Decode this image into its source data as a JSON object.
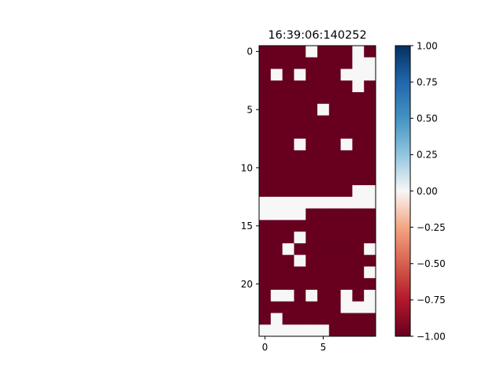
{
  "chart_data": {
    "type": "heatmap",
    "title": "16:39:06:140252",
    "xlabel": "",
    "ylabel": "",
    "colormap": "RdBu",
    "vmin": -1,
    "vmax": 1,
    "x_ticks": [
      "0",
      "5"
    ],
    "y_ticks": [
      "0",
      "5",
      "10",
      "15",
      "20"
    ],
    "colorbar_ticks": [
      "1.00",
      "0.75",
      "0.50",
      "0.25",
      "0.00",
      "−0.25",
      "−0.50",
      "−0.75",
      "−1.00"
    ],
    "colorbar_values": [
      1.0,
      0.75,
      0.5,
      0.25,
      0.0,
      -0.25,
      -0.5,
      -0.75,
      -1.0
    ],
    "grid": false,
    "n_rows": 25,
    "n_cols": 10,
    "values": [
      [
        -1,
        -1,
        -1,
        -1,
        0,
        -1,
        -1,
        -1,
        0,
        -1
      ],
      [
        -1,
        -1,
        -1,
        -1,
        -1,
        -1,
        -1,
        -1,
        0,
        0
      ],
      [
        -1,
        0,
        -1,
        0,
        -1,
        -1,
        -1,
        0,
        0,
        0
      ],
      [
        -1,
        -1,
        -1,
        -1,
        -1,
        -1,
        -1,
        -1,
        0,
        -1
      ],
      [
        -1,
        -1,
        -1,
        -1,
        -1,
        -1,
        -1,
        -1,
        -1,
        -1
      ],
      [
        -1,
        -1,
        -1,
        -1,
        -1,
        0,
        -1,
        -1,
        -1,
        -1
      ],
      [
        -1,
        -1,
        -1,
        -1,
        -1,
        -1,
        -1,
        -1,
        -1,
        -1
      ],
      [
        -1,
        -1,
        -1,
        -1,
        -1,
        -1,
        -1,
        -1,
        -1,
        -1
      ],
      [
        -1,
        -1,
        -1,
        0,
        -1,
        -1,
        -1,
        0,
        -1,
        -1
      ],
      [
        -1,
        -1,
        -1,
        -1,
        -1,
        -1,
        -1,
        -1,
        -1,
        -1
      ],
      [
        -1,
        -1,
        -1,
        -1,
        -1,
        -1,
        -1,
        -1,
        -1,
        -1
      ],
      [
        -1,
        -1,
        -1,
        -1,
        -1,
        -1,
        -1,
        -1,
        -1,
        -1
      ],
      [
        -1,
        -1,
        -1,
        -1,
        -1,
        -1,
        -1,
        -1,
        0,
        0
      ],
      [
        0,
        0,
        0,
        0,
        0,
        0,
        0,
        0,
        0,
        0
      ],
      [
        0,
        0,
        0,
        0,
        -1,
        -1,
        -1,
        -1,
        -1,
        -1
      ],
      [
        -1,
        -1,
        -1,
        -1,
        -1,
        -1,
        -1,
        -1,
        -1,
        -1
      ],
      [
        -1,
        -1,
        -1,
        0,
        -1,
        -1,
        -1,
        -1,
        -1,
        -1
      ],
      [
        -1,
        -1,
        0,
        -1,
        -1,
        -1,
        -1,
        -1,
        -1,
        0
      ],
      [
        -1,
        -1,
        -1,
        0,
        -1,
        -1,
        -1,
        -1,
        -1,
        -1
      ],
      [
        -1,
        -1,
        -1,
        -1,
        -1,
        -1,
        -1,
        -1,
        -1,
        0
      ],
      [
        -1,
        -1,
        -1,
        -1,
        -1,
        -1,
        -1,
        -1,
        -1,
        -1
      ],
      [
        -1,
        0,
        0,
        -1,
        0,
        -1,
        -1,
        0,
        -1,
        0
      ],
      [
        -1,
        -1,
        -1,
        -1,
        -1,
        -1,
        -1,
        0,
        0,
        0
      ],
      [
        -1,
        0,
        -1,
        -1,
        -1,
        -1,
        -1,
        -1,
        -1,
        -1
      ],
      [
        0,
        0,
        0,
        0,
        0,
        0,
        -1,
        -1,
        -1,
        -1
      ]
    ]
  }
}
